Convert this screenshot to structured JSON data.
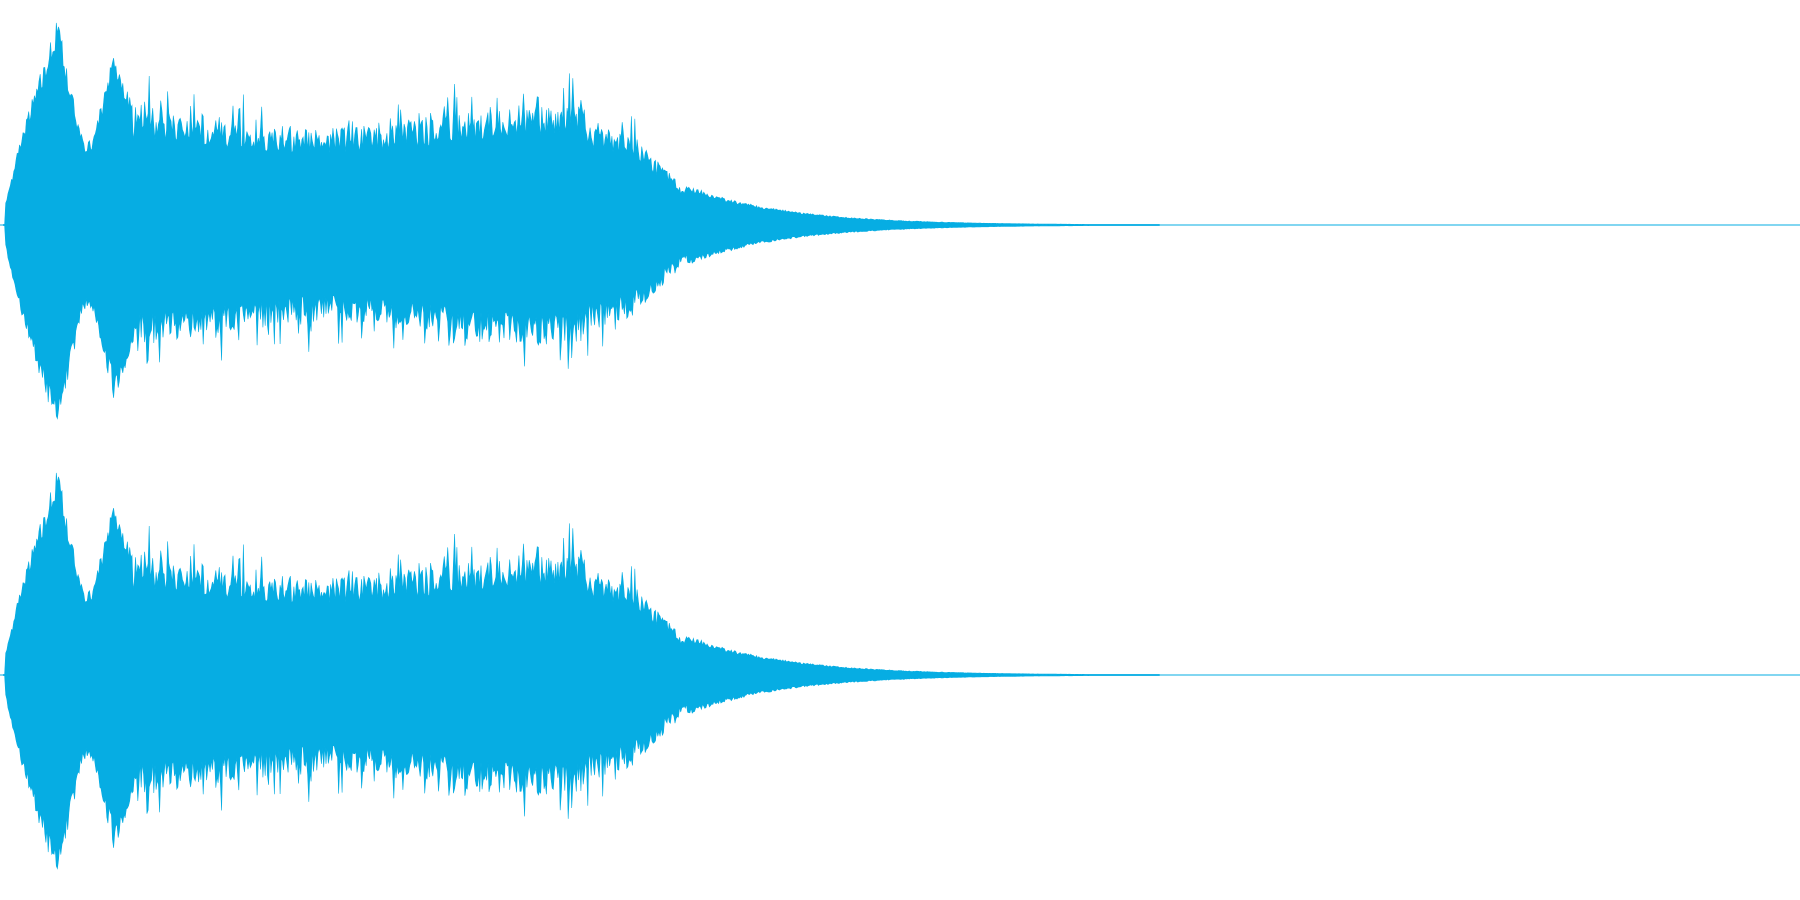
{
  "waveform": {
    "channels": 2,
    "color": "#06ade3"
  }
}
